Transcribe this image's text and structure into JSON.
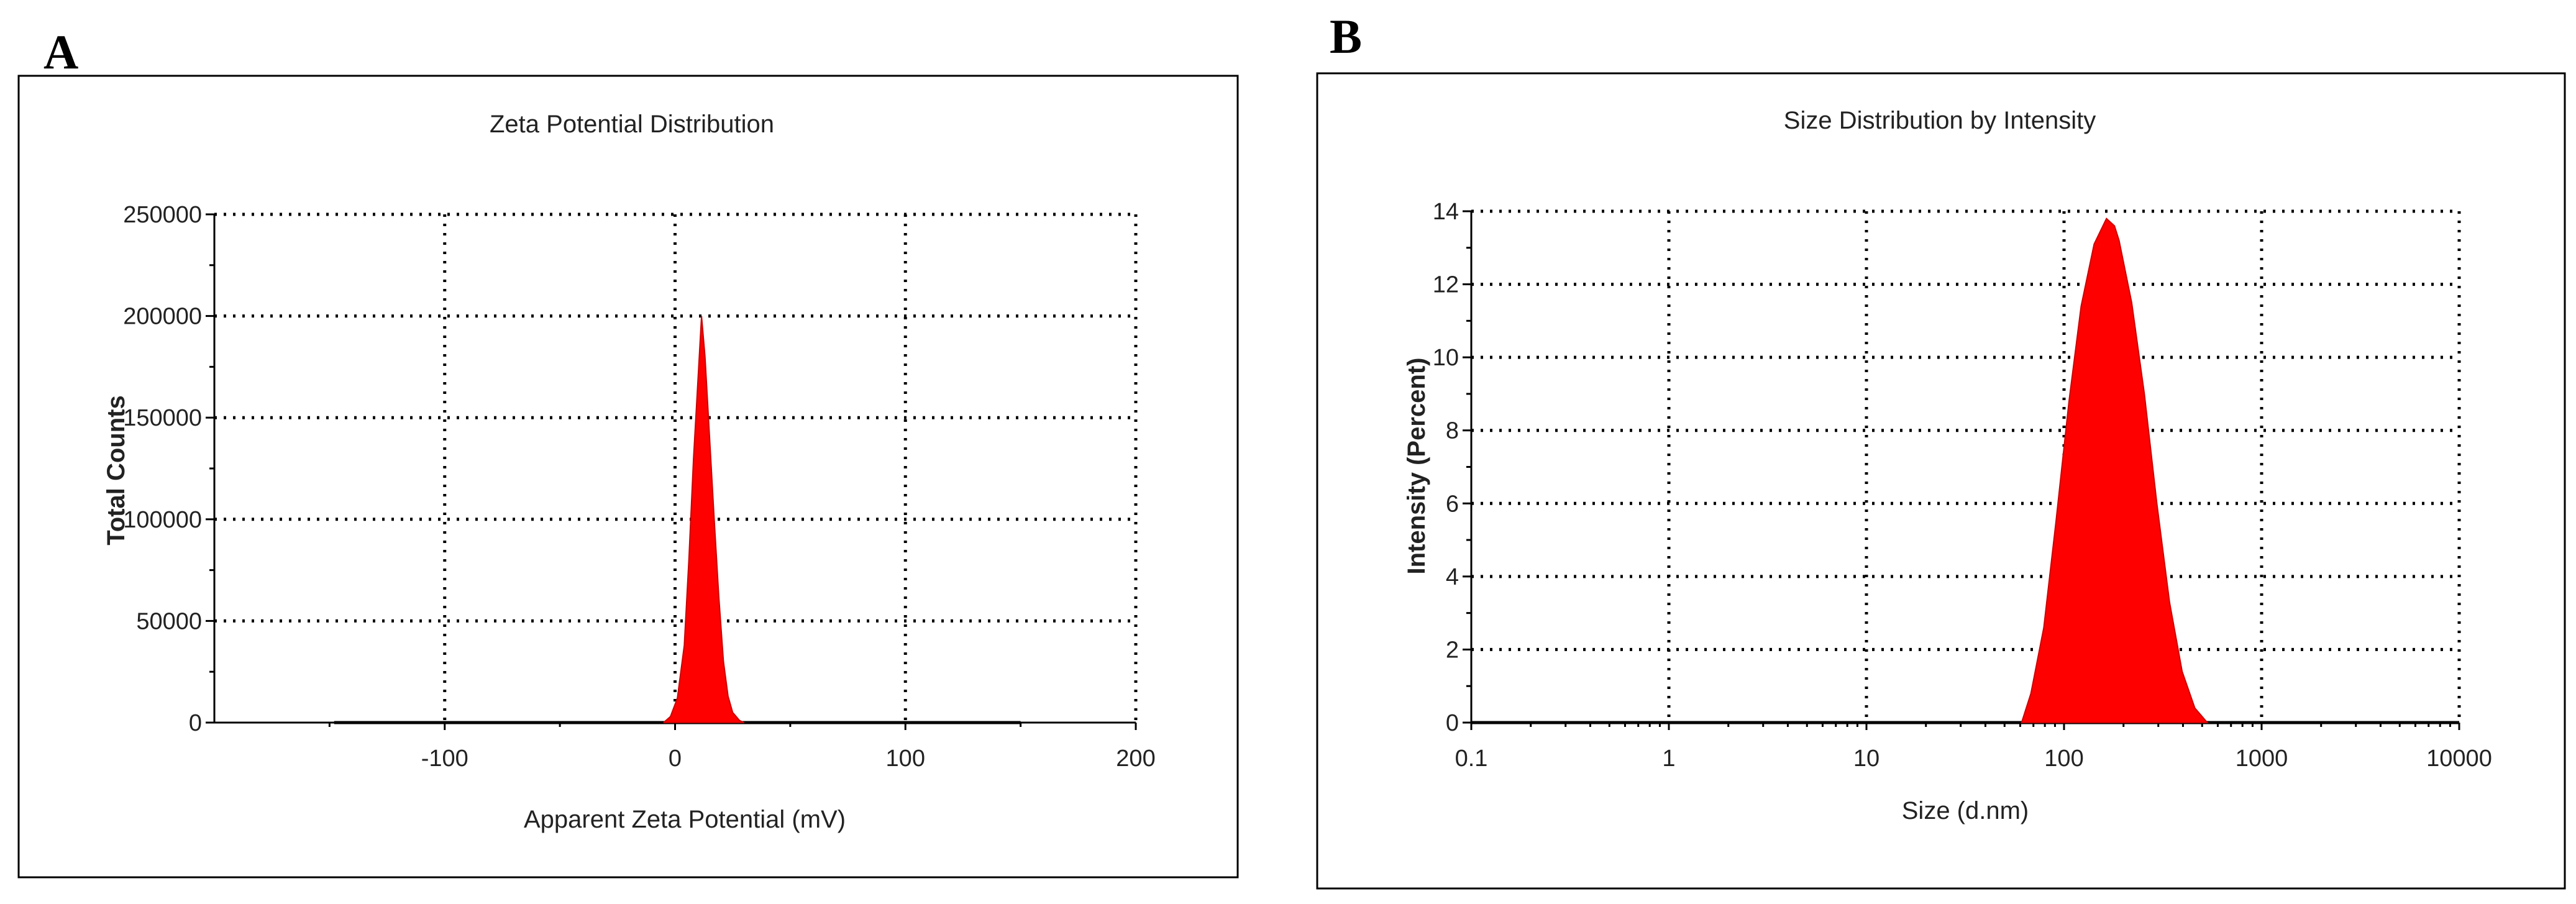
{
  "panels": {
    "a": {
      "letter": "A"
    },
    "b": {
      "letter": "B"
    }
  },
  "chart_data": [
    {
      "type": "area",
      "title": "Zeta Potential Distribution",
      "xlabel": "Apparent Zeta Potential (mV)",
      "ylabel": "Total Counts",
      "xlim": [
        -200,
        200
      ],
      "ylim": [
        0,
        250000
      ],
      "xticks": [
        -100,
        0,
        100,
        200
      ],
      "yticks": [
        0,
        50000,
        100000,
        150000,
        200000,
        250000
      ],
      "grid": true,
      "fill_color": "#ff0000",
      "baseline": [
        -148,
        150
      ],
      "series": [
        {
          "x": [
            -5,
            -2,
            1,
            4,
            6,
            8,
            10,
            11.5,
            13,
            15,
            17,
            19,
            21,
            23,
            25,
            28,
            30
          ],
          "y": [
            0,
            3000,
            12000,
            38000,
            80000,
            130000,
            170000,
            200000,
            180000,
            140000,
            100000,
            62000,
            30000,
            13000,
            5000,
            1000,
            0
          ]
        }
      ]
    },
    {
      "type": "area",
      "title": "Size Distribution by Intensity",
      "xlabel": "Size (d.nm)",
      "ylabel": "Intensity (Percent)",
      "xscale": "log",
      "xlim": [
        0.1,
        10000
      ],
      "ylim": [
        0,
        14
      ],
      "xticks": [
        0.1,
        1,
        10,
        100,
        1000,
        10000
      ],
      "xtick_labels": [
        "0.1",
        "1",
        "10",
        "100",
        "1000",
        "10000"
      ],
      "yticks": [
        0,
        2,
        4,
        6,
        8,
        10,
        12,
        14
      ],
      "grid": true,
      "fill_color": "#ff0000",
      "baseline": [
        0.1,
        10000
      ],
      "series": [
        {
          "x": [
            61,
            68,
            79,
            91,
            106,
            122,
            142,
            164,
            180,
            190,
            220,
            255,
            295,
            342,
            396,
            459,
            531
          ],
          "y": [
            0,
            0.8,
            2.6,
            5.5,
            8.8,
            11.4,
            13.1,
            13.8,
            13.6,
            13.2,
            11.5,
            9.0,
            6.0,
            3.3,
            1.4,
            0.4,
            0
          ]
        }
      ]
    }
  ]
}
